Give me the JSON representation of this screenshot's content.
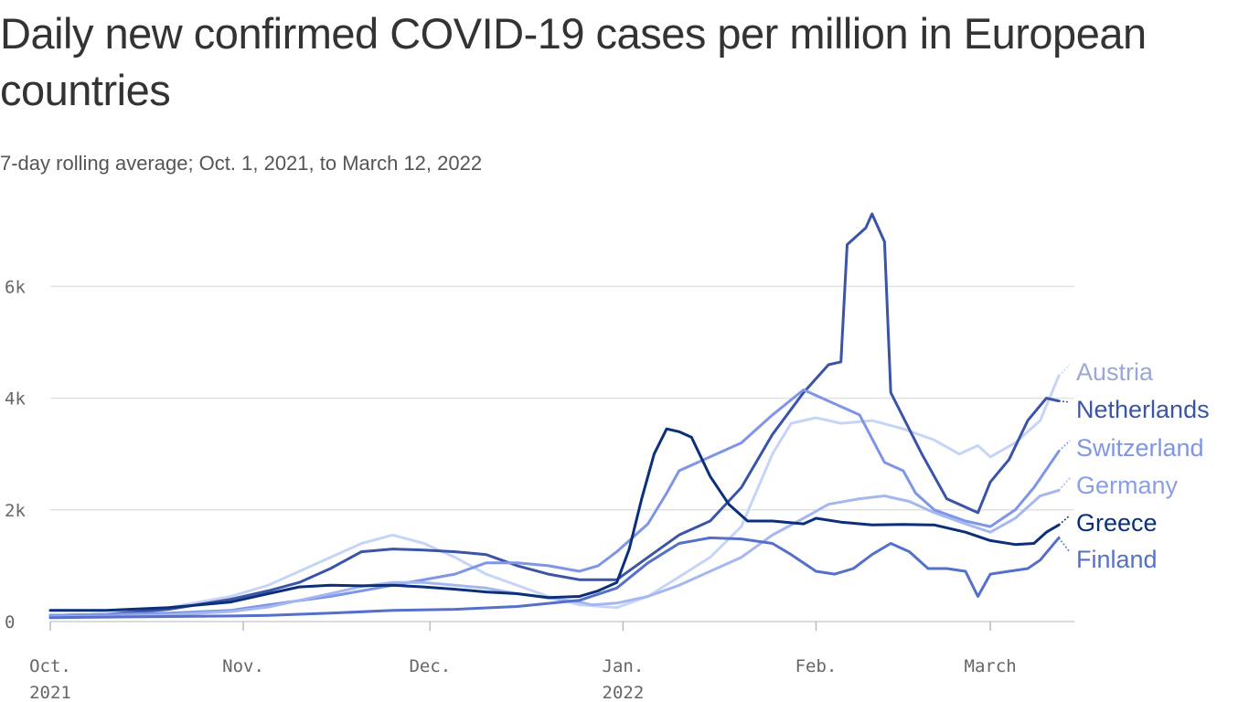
{
  "title": "Daily new confirmed COVID-19 cases per million in European countries",
  "subtitle": "7-day rolling average; Oct. 1, 2021, to March 12, 2022",
  "chart_data": {
    "type": "line",
    "x_start": "2021-10-01",
    "x_end": "2022-03-12",
    "ylim": [
      0,
      7300
    ],
    "y_ticks": [
      {
        "value": 0,
        "label": "0"
      },
      {
        "value": 2000,
        "label": "2k"
      },
      {
        "value": 4000,
        "label": "4k"
      },
      {
        "value": 6000,
        "label": "6k"
      }
    ],
    "x_ticks": [
      {
        "date": "2021-10-01",
        "label": "Oct.",
        "label2": "2021"
      },
      {
        "date": "2021-11-01",
        "label": "Nov.",
        "label2": ""
      },
      {
        "date": "2021-12-01",
        "label": "Dec.",
        "label2": ""
      },
      {
        "date": "2022-01-01",
        "label": "Jan.",
        "label2": "2022"
      },
      {
        "date": "2022-02-01",
        "label": "Feb.",
        "label2": ""
      },
      {
        "date": "2022-03-01",
        "label": "March",
        "label2": ""
      }
    ],
    "grid": true,
    "legend": "direct labels at right",
    "series": [
      {
        "name": "Austria",
        "color": "#c6d5f7",
        "label_color": "#9aa9d2",
        "points": [
          [
            "2021-10-01",
            110
          ],
          [
            "2021-10-10",
            130
          ],
          [
            "2021-10-20",
            250
          ],
          [
            "2021-10-30",
            450
          ],
          [
            "2021-11-05",
            650
          ],
          [
            "2021-11-12",
            1000
          ],
          [
            "2021-11-20",
            1400
          ],
          [
            "2021-11-25",
            1550
          ],
          [
            "2021-11-30",
            1400
          ],
          [
            "2021-12-05",
            1150
          ],
          [
            "2021-12-10",
            850
          ],
          [
            "2021-12-15",
            650
          ],
          [
            "2021-12-20",
            450
          ],
          [
            "2021-12-25",
            300
          ],
          [
            "2021-12-31",
            250
          ],
          [
            "2022-01-05",
            450
          ],
          [
            "2022-01-10",
            800
          ],
          [
            "2022-01-15",
            1150
          ],
          [
            "2022-01-20",
            1700
          ],
          [
            "2022-01-25",
            3000
          ],
          [
            "2022-01-28",
            3550
          ],
          [
            "2022-02-01",
            3650
          ],
          [
            "2022-02-05",
            3550
          ],
          [
            "2022-02-10",
            3600
          ],
          [
            "2022-02-15",
            3450
          ],
          [
            "2022-02-20",
            3250
          ],
          [
            "2022-02-24",
            3000
          ],
          [
            "2022-02-27",
            3150
          ],
          [
            "2022-03-01",
            2950
          ],
          [
            "2022-03-05",
            3200
          ],
          [
            "2022-03-09",
            3600
          ],
          [
            "2022-03-12",
            4400
          ]
        ]
      },
      {
        "name": "Netherlands",
        "color": "#3a55a8",
        "label_color": "#3a55a8",
        "points": [
          [
            "2021-10-01",
            110
          ],
          [
            "2021-10-10",
            130
          ],
          [
            "2021-10-20",
            220
          ],
          [
            "2021-10-30",
            400
          ],
          [
            "2021-11-05",
            550
          ],
          [
            "2021-11-10",
            700
          ],
          [
            "2021-11-15",
            950
          ],
          [
            "2021-11-20",
            1250
          ],
          [
            "2021-11-25",
            1300
          ],
          [
            "2021-11-30",
            1280
          ],
          [
            "2021-12-05",
            1250
          ],
          [
            "2021-12-10",
            1200
          ],
          [
            "2021-12-15",
            1000
          ],
          [
            "2021-12-20",
            850
          ],
          [
            "2021-12-25",
            750
          ],
          [
            "2021-12-31",
            750
          ],
          [
            "2022-01-05",
            1150
          ],
          [
            "2022-01-10",
            1550
          ],
          [
            "2022-01-15",
            1800
          ],
          [
            "2022-01-20",
            2400
          ],
          [
            "2022-01-25",
            3350
          ],
          [
            "2022-01-30",
            4100
          ],
          [
            "2022-02-03",
            4600
          ],
          [
            "2022-02-05",
            4650
          ],
          [
            "2022-02-06",
            6750
          ],
          [
            "2022-02-09",
            7050
          ],
          [
            "2022-02-10",
            7300
          ],
          [
            "2022-02-12",
            6800
          ],
          [
            "2022-02-13",
            4100
          ],
          [
            "2022-02-18",
            3000
          ],
          [
            "2022-02-22",
            2200
          ],
          [
            "2022-02-27",
            1950
          ],
          [
            "2022-03-01",
            2500
          ],
          [
            "2022-03-04",
            2900
          ],
          [
            "2022-03-07",
            3600
          ],
          [
            "2022-03-10",
            4000
          ],
          [
            "2022-03-12",
            3950
          ]
        ]
      },
      {
        "name": "Switzerland",
        "color": "#7f95e6",
        "label_color": "#7f95e6",
        "points": [
          [
            "2021-10-01",
            110
          ],
          [
            "2021-10-10",
            130
          ],
          [
            "2021-10-20",
            150
          ],
          [
            "2021-10-30",
            200
          ],
          [
            "2021-11-05",
            300
          ],
          [
            "2021-11-15",
            450
          ],
          [
            "2021-11-25",
            650
          ],
          [
            "2021-12-05",
            850
          ],
          [
            "2021-12-10",
            1050
          ],
          [
            "2021-12-15",
            1050
          ],
          [
            "2021-12-20",
            1000
          ],
          [
            "2021-12-25",
            900
          ],
          [
            "2021-12-28",
            1000
          ],
          [
            "2021-12-31",
            1250
          ],
          [
            "2022-01-05",
            1750
          ],
          [
            "2022-01-08",
            2300
          ],
          [
            "2022-01-10",
            2700
          ],
          [
            "2022-01-15",
            2950
          ],
          [
            "2022-01-20",
            3200
          ],
          [
            "2022-01-25",
            3700
          ],
          [
            "2022-01-30",
            4150
          ],
          [
            "2022-02-03",
            3950
          ],
          [
            "2022-02-08",
            3700
          ],
          [
            "2022-02-12",
            2850
          ],
          [
            "2022-02-15",
            2700
          ],
          [
            "2022-02-17",
            2300
          ],
          [
            "2022-02-20",
            2000
          ],
          [
            "2022-02-25",
            1800
          ],
          [
            "2022-03-01",
            1700
          ],
          [
            "2022-03-05",
            2000
          ],
          [
            "2022-03-08",
            2400
          ],
          [
            "2022-03-12",
            3050
          ]
        ]
      },
      {
        "name": "Germany",
        "color": "#a5b7f0",
        "label_color": "#8aa0e6",
        "points": [
          [
            "2021-10-01",
            80
          ],
          [
            "2021-10-10",
            90
          ],
          [
            "2021-10-20",
            120
          ],
          [
            "2021-10-30",
            180
          ],
          [
            "2021-11-05",
            260
          ],
          [
            "2021-11-10",
            380
          ],
          [
            "2021-11-15",
            500
          ],
          [
            "2021-11-20",
            630
          ],
          [
            "2021-11-25",
            700
          ],
          [
            "2021-11-30",
            700
          ],
          [
            "2021-12-05",
            650
          ],
          [
            "2021-12-10",
            600
          ],
          [
            "2021-12-15",
            500
          ],
          [
            "2021-12-20",
            420
          ],
          [
            "2021-12-25",
            350
          ],
          [
            "2021-12-27",
            300
          ],
          [
            "2021-12-31",
            330
          ],
          [
            "2022-01-05",
            450
          ],
          [
            "2022-01-10",
            650
          ],
          [
            "2022-01-15",
            900
          ],
          [
            "2022-01-20",
            1150
          ],
          [
            "2022-01-25",
            1550
          ],
          [
            "2022-01-30",
            1850
          ],
          [
            "2022-02-03",
            2100
          ],
          [
            "2022-02-08",
            2200
          ],
          [
            "2022-02-12",
            2250
          ],
          [
            "2022-02-16",
            2150
          ],
          [
            "2022-02-20",
            1950
          ],
          [
            "2022-02-25",
            1750
          ],
          [
            "2022-03-01",
            1600
          ],
          [
            "2022-03-05",
            1850
          ],
          [
            "2022-03-09",
            2250
          ],
          [
            "2022-03-12",
            2350
          ]
        ]
      },
      {
        "name": "Greece",
        "color": "#0c2f7a",
        "label_color": "#0c2f7a",
        "points": [
          [
            "2021-10-01",
            200
          ],
          [
            "2021-10-10",
            200
          ],
          [
            "2021-10-20",
            250
          ],
          [
            "2021-10-30",
            350
          ],
          [
            "2021-11-05",
            500
          ],
          [
            "2021-11-10",
            620
          ],
          [
            "2021-11-15",
            650
          ],
          [
            "2021-11-20",
            640
          ],
          [
            "2021-11-25",
            650
          ],
          [
            "2021-11-30",
            620
          ],
          [
            "2021-12-05",
            580
          ],
          [
            "2021-12-10",
            530
          ],
          [
            "2021-12-15",
            500
          ],
          [
            "2021-12-20",
            430
          ],
          [
            "2021-12-25",
            450
          ],
          [
            "2021-12-28",
            550
          ],
          [
            "2021-12-31",
            700
          ],
          [
            "2022-01-02",
            1300
          ],
          [
            "2022-01-04",
            2200
          ],
          [
            "2022-01-06",
            3000
          ],
          [
            "2022-01-08",
            3450
          ],
          [
            "2022-01-10",
            3400
          ],
          [
            "2022-01-12",
            3300
          ],
          [
            "2022-01-15",
            2600
          ],
          [
            "2022-01-18",
            2100
          ],
          [
            "2022-01-21",
            1800
          ],
          [
            "2022-01-25",
            1800
          ],
          [
            "2022-01-30",
            1750
          ],
          [
            "2022-02-01",
            1850
          ],
          [
            "2022-02-05",
            1780
          ],
          [
            "2022-02-10",
            1730
          ],
          [
            "2022-02-15",
            1740
          ],
          [
            "2022-02-20",
            1730
          ],
          [
            "2022-02-25",
            1600
          ],
          [
            "2022-03-01",
            1450
          ],
          [
            "2022-03-05",
            1380
          ],
          [
            "2022-03-08",
            1400
          ],
          [
            "2022-03-10",
            1600
          ],
          [
            "2022-03-12",
            1730
          ]
        ]
      },
      {
        "name": "Finland",
        "color": "#5570c9",
        "label_color": "#5570c9",
        "points": [
          [
            "2021-10-01",
            70
          ],
          [
            "2021-10-10",
            80
          ],
          [
            "2021-10-20",
            90
          ],
          [
            "2021-10-30",
            100
          ],
          [
            "2021-11-05",
            110
          ],
          [
            "2021-11-15",
            150
          ],
          [
            "2021-11-25",
            200
          ],
          [
            "2021-12-05",
            220
          ],
          [
            "2021-12-15",
            270
          ],
          [
            "2021-12-25",
            380
          ],
          [
            "2021-12-31",
            600
          ],
          [
            "2022-01-05",
            1050
          ],
          [
            "2022-01-10",
            1400
          ],
          [
            "2022-01-15",
            1500
          ],
          [
            "2022-01-20",
            1480
          ],
          [
            "2022-01-25",
            1400
          ],
          [
            "2022-01-28",
            1200
          ],
          [
            "2022-02-01",
            900
          ],
          [
            "2022-02-04",
            850
          ],
          [
            "2022-02-07",
            950
          ],
          [
            "2022-02-10",
            1200
          ],
          [
            "2022-02-13",
            1400
          ],
          [
            "2022-02-16",
            1250
          ],
          [
            "2022-02-19",
            950
          ],
          [
            "2022-02-22",
            950
          ],
          [
            "2022-02-25",
            900
          ],
          [
            "2022-02-27",
            450
          ],
          [
            "2022-03-01",
            850
          ],
          [
            "2022-03-04",
            900
          ],
          [
            "2022-03-07",
            950
          ],
          [
            "2022-03-09",
            1100
          ],
          [
            "2022-03-12",
            1500
          ]
        ]
      }
    ]
  }
}
